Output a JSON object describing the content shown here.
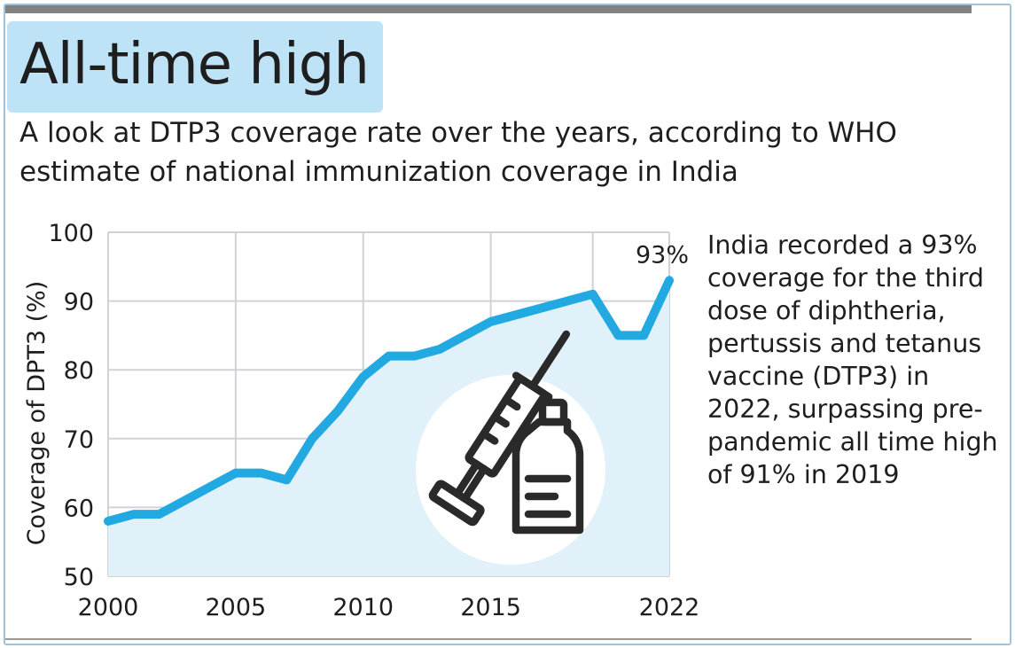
{
  "title": "All-time high",
  "subtitle": "A look at DTP3 coverage rate over the years, according to WHO estimate of national immunization coverage in India",
  "annotation": "India recorded a 93% coverage for the third dose of diphtheria, pertussis and tetanus vaccine (DTP3) in 2022, surpassing pre-pandemic all time high of 91% in 2019",
  "colors": {
    "line": "#23a9e1",
    "area": "#e1f1fa",
    "grid": "#cfd3d6",
    "highlight": "#bfe3f6",
    "icon_circle": "#ffffff",
    "icon_stroke": "#2a2a2a"
  },
  "icon": "syringe-vial-icon",
  "chart_data": {
    "type": "area",
    "xlabel": "",
    "ylabel": "Coverage of DPT3 (%)",
    "xlim": [
      2000,
      2022
    ],
    "ylim": [
      50,
      100
    ],
    "x_ticks": [
      2000,
      2005,
      2010,
      2015,
      2022
    ],
    "y_ticks": [
      50,
      60,
      70,
      80,
      90,
      100
    ],
    "x_gridlines": [
      2000,
      2005,
      2010,
      2015,
      2019,
      2022
    ],
    "grid": true,
    "series": [
      {
        "x": [
          2000,
          2001,
          2002,
          2003,
          2004,
          2005,
          2006,
          2007,
          2008,
          2009,
          2010,
          2011,
          2012,
          2013,
          2014,
          2015,
          2016,
          2017,
          2018,
          2019,
          2020,
          2021,
          2022
        ],
        "values": [
          58,
          59,
          59,
          61,
          63,
          65,
          65,
          64,
          70,
          74,
          79,
          82,
          82,
          83,
          85,
          87,
          88,
          89,
          90,
          91,
          85,
          85,
          93
        ]
      }
    ],
    "annotations": [
      {
        "x": 2022,
        "y": 93,
        "text": "93%"
      }
    ]
  }
}
